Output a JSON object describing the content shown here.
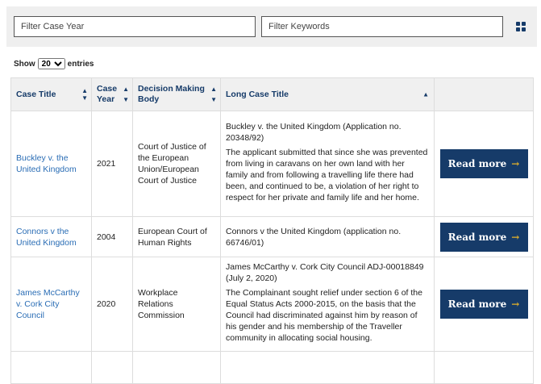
{
  "filters": {
    "year_placeholder": "Filter Case Year",
    "keywords_placeholder": "Filter Keywords"
  },
  "length": {
    "show": "Show",
    "value": "20",
    "entries": "entries"
  },
  "columns": [
    "Case Title",
    "Case Year",
    "Decision Making Body",
    "Long Case Title",
    ""
  ],
  "rows": [
    {
      "title": "Buckley v. the United Kingdom",
      "year": "2021",
      "body": "Court of Justice of the European Union/European Court of Justice",
      "long_title": "Buckley v. the United Kingdom (Application no. 20348/92)",
      "summary": "The applicant submitted that since she was prevented from living in caravans on her own land with her family and from following a travelling life there had been, and continued to be, a violation of her right to respect for her private and family life and her home.",
      "button": "Read more"
    },
    {
      "title": "Connors v the United Kingdom",
      "year": "2004",
      "body": "European Court of Human Rights",
      "long_title": "Connors v the United Kingdom (application no. 66746/01)",
      "summary": "",
      "button": "Read more"
    },
    {
      "title": "James McCarthy v. Cork City Council",
      "year": "2020",
      "body": "Workplace Relations Commission",
      "long_title": "James McCarthy v. Cork City Council ADJ-00018849 (July 2, 2020)",
      "summary": "The Complainant sought relief under section 6 of the Equal Status Acts 2000-2015, on the basis that the Council had discriminated against him by reason of his gender and his membership of the Traveller community in allocating social housing.",
      "button": "Read more"
    }
  ]
}
